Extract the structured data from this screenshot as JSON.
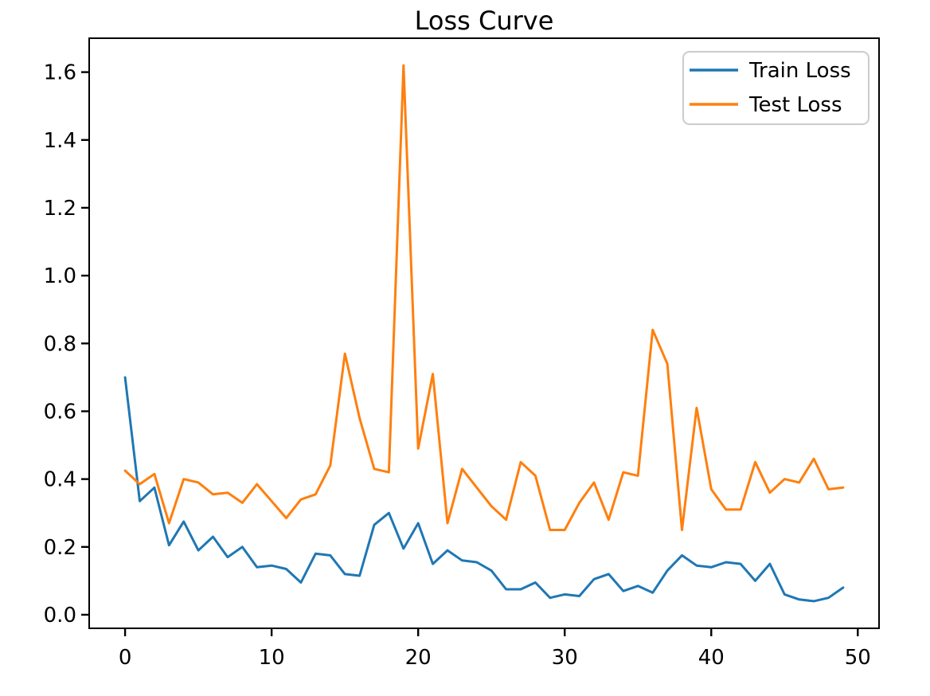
{
  "title": "Loss Curve",
  "legend": {
    "items": [
      {
        "label": "Train Loss",
        "color": "#1f77b4"
      },
      {
        "label": "Test Loss",
        "color": "#ff7f0e"
      }
    ]
  },
  "axes": {
    "x_tick_labels": [
      "0",
      "10",
      "20",
      "30",
      "40",
      "50"
    ],
    "y_tick_labels": [
      "0.0",
      "0.2",
      "0.4",
      "0.6",
      "0.8",
      "1.0",
      "1.2",
      "1.4",
      "1.6"
    ]
  },
  "colors": {
    "train_line": "#1f77b4",
    "test_line": "#ff7f0e",
    "spine": "#000000",
    "legend_border": "#cccccc",
    "background": "#ffffff"
  },
  "chart_data": {
    "type": "line",
    "title": "Loss Curve",
    "xlabel": "",
    "ylabel": "",
    "grid": false,
    "legend_position": "upper right",
    "xlim": [
      -2.45,
      51.45
    ],
    "ylim": [
      -0.04,
      1.7
    ],
    "xticks": [
      0,
      10,
      20,
      30,
      40,
      50
    ],
    "yticks": [
      0.0,
      0.2,
      0.4,
      0.6,
      0.8,
      1.0,
      1.2,
      1.4,
      1.6
    ],
    "x": [
      0,
      1,
      2,
      3,
      4,
      5,
      6,
      7,
      8,
      9,
      10,
      11,
      12,
      13,
      14,
      15,
      16,
      17,
      18,
      19,
      20,
      21,
      22,
      23,
      24,
      25,
      26,
      27,
      28,
      29,
      30,
      31,
      32,
      33,
      34,
      35,
      36,
      37,
      38,
      39,
      40,
      41,
      42,
      43,
      44,
      45,
      46,
      47,
      48,
      49
    ],
    "series": [
      {
        "name": "Train Loss",
        "color": "#1f77b4",
        "values": [
          0.7,
          0.335,
          0.375,
          0.205,
          0.275,
          0.19,
          0.23,
          0.17,
          0.2,
          0.14,
          0.145,
          0.135,
          0.095,
          0.18,
          0.175,
          0.12,
          0.115,
          0.265,
          0.3,
          0.195,
          0.27,
          0.15,
          0.19,
          0.16,
          0.155,
          0.13,
          0.075,
          0.075,
          0.095,
          0.05,
          0.06,
          0.055,
          0.105,
          0.12,
          0.07,
          0.085,
          0.065,
          0.13,
          0.175,
          0.145,
          0.14,
          0.155,
          0.15,
          0.1,
          0.15,
          0.06,
          0.045,
          0.04,
          0.05,
          0.08
        ]
      },
      {
        "name": "Test Loss",
        "color": "#ff7f0e",
        "values": [
          0.425,
          0.385,
          0.415,
          0.27,
          0.4,
          0.39,
          0.355,
          0.36,
          0.33,
          0.385,
          0.335,
          0.285,
          0.34,
          0.355,
          0.44,
          0.77,
          0.58,
          0.43,
          0.42,
          1.62,
          0.49,
          0.71,
          0.27,
          0.43,
          0.375,
          0.32,
          0.28,
          0.45,
          0.41,
          0.25,
          0.25,
          0.33,
          0.39,
          0.28,
          0.42,
          0.41,
          0.84,
          0.74,
          0.25,
          0.61,
          0.37,
          0.31,
          0.31,
          0.45,
          0.36,
          0.4,
          0.39,
          0.46,
          0.37,
          0.375
        ]
      }
    ]
  }
}
